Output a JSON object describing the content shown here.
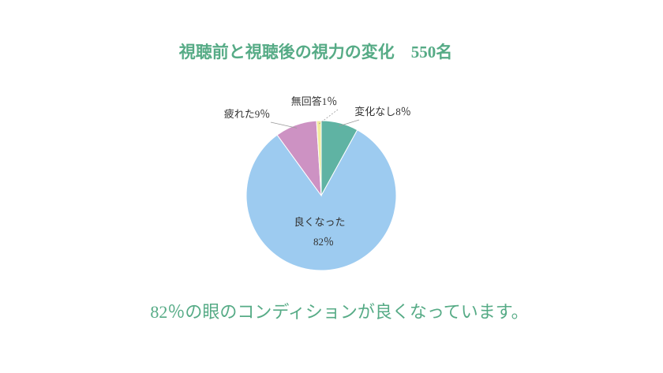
{
  "chart_data": {
    "type": "pie",
    "title": "視聴前と視聴後の視力の変化　550名",
    "categories": [
      "変化なし",
      "良くなった",
      "疲れた",
      "無回答"
    ],
    "values": [
      8,
      82,
      9,
      1
    ],
    "value_labels": [
      "8％",
      "82％",
      "9％",
      "1％"
    ],
    "colors": [
      "#5fb3a3",
      "#9dcbf0",
      "#cd92c3",
      "#f2eb9e"
    ],
    "annotation": "82％の眼のコンディションが良くなっています。"
  }
}
